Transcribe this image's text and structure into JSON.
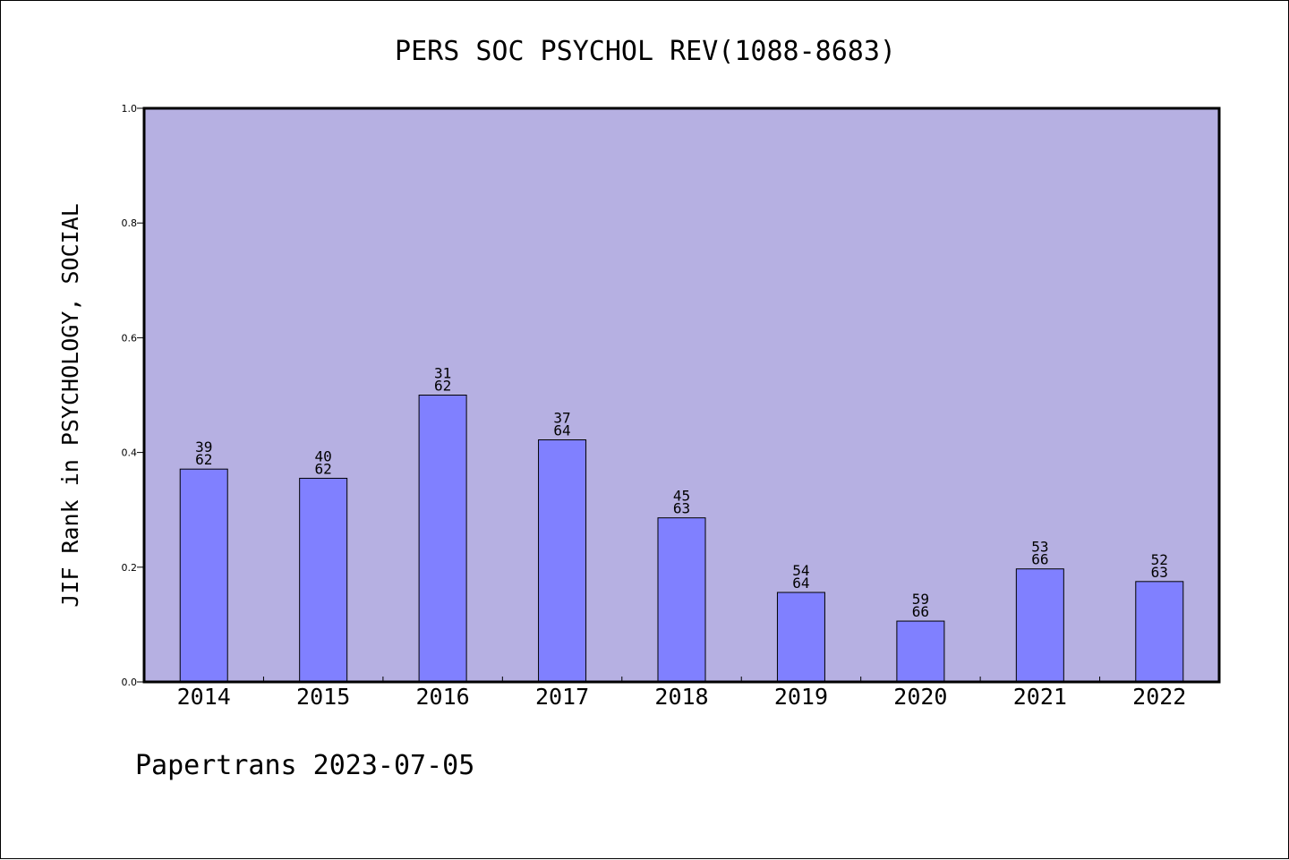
{
  "chart_data": {
    "type": "bar",
    "title": "PERS SOC PSYCHOL REV(1088-8683)",
    "ylabel": "JIF Rank in PSYCHOLOGY, SOCIAL",
    "xlabel": "",
    "categories": [
      "2014",
      "2015",
      "2016",
      "2017",
      "2018",
      "2019",
      "2020",
      "2021",
      "2022"
    ],
    "values": [
      0.371,
      0.355,
      0.5,
      0.422,
      0.286,
      0.156,
      0.106,
      0.197,
      0.175
    ],
    "rank": [
      "39",
      "40",
      "31",
      "37",
      "45",
      "54",
      "59",
      "53",
      "52"
    ],
    "total": [
      "62",
      "62",
      "62",
      "64",
      "63",
      "64",
      "66",
      "66",
      "63"
    ],
    "ylim": [
      0,
      1.0
    ],
    "yticks": [
      "0.0",
      "0.2",
      "0.4",
      "0.6",
      "0.8",
      "1.0"
    ],
    "grid": false,
    "colors": {
      "plot_background": "#b6b0e2",
      "bar_fill": "#8080ff",
      "bar_stroke": "#000000"
    }
  },
  "footer": {
    "text": "Papertrans 2023-07-05"
  }
}
